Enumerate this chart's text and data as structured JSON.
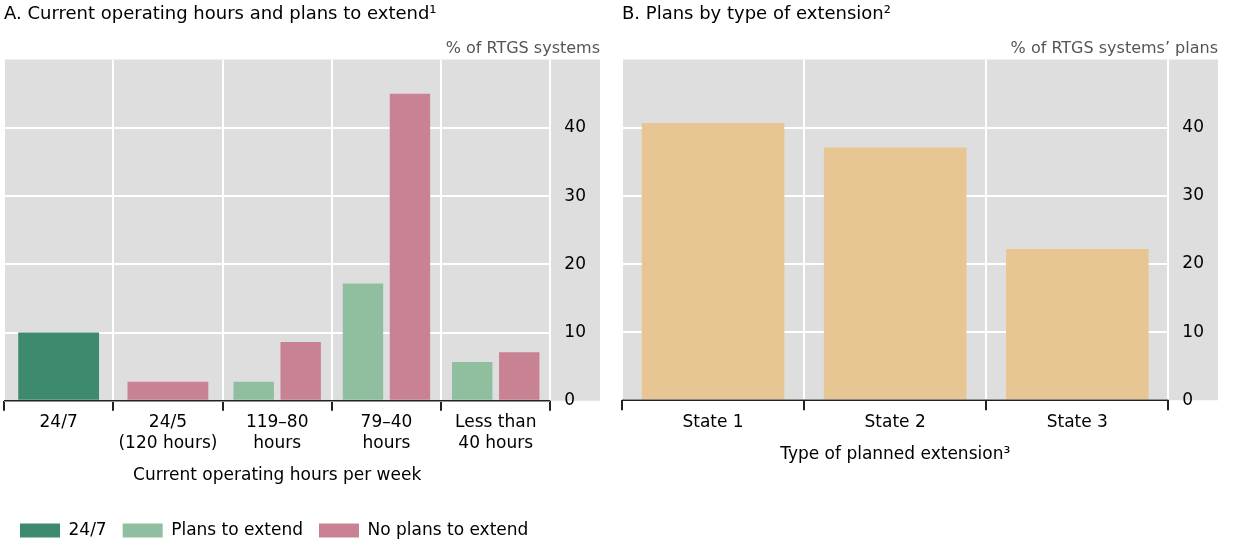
{
  "chart_data": [
    {
      "type": "bar",
      "title": "A. Current operating hours and plans to extend¹",
      "ylabel": "% of RTGS systems",
      "xlabel": "Current operating hours per week",
      "categories": [
        "24/7",
        "24/5\n(120 hours)",
        "119–80\nhours",
        "79–40\nhours",
        "Less than\n40 hours"
      ],
      "series": [
        {
          "name": "24/7",
          "color": "#3e8a6e",
          "values": [
            10,
            null,
            null,
            null,
            null
          ]
        },
        {
          "name": "Plans to extend",
          "color": "#8fbf9f",
          "values": [
            null,
            null,
            2.8,
            17.2,
            5.7
          ]
        },
        {
          "name": "No plans to extend",
          "color": "#c98293",
          "values": [
            null,
            2.8,
            8.6,
            45,
            7.1
          ]
        }
      ],
      "ylim": [
        0,
        50
      ],
      "yticks": [
        0,
        10,
        20,
        30,
        40
      ],
      "grid": true,
      "legend": "bottom"
    },
    {
      "type": "bar",
      "title": "B. Plans by type of extension²",
      "ylabel": "% of RTGS systems’ plans",
      "xlabel": "Type of planned extension³",
      "categories": [
        "State 1",
        "State 2",
        "State 3"
      ],
      "series": [
        {
          "color": "#e8c693",
          "values": [
            40.7,
            37.1,
            22.2
          ]
        }
      ],
      "ylim": [
        0,
        50
      ],
      "yticks": [
        0,
        10,
        20,
        30,
        40
      ],
      "grid": true
    }
  ]
}
